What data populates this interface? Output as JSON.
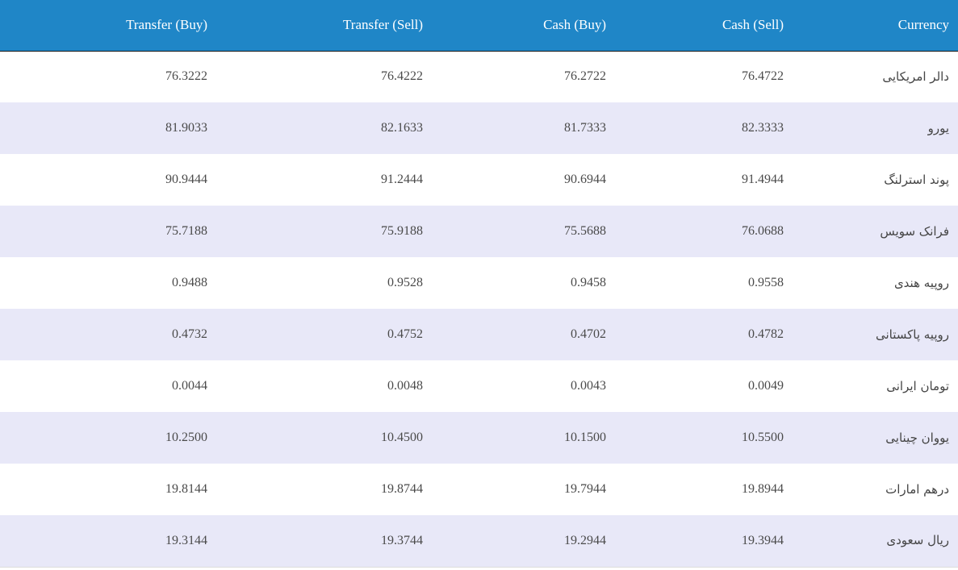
{
  "table": {
    "headers": {
      "transfer_buy": "Transfer (Buy)",
      "transfer_sell": "Transfer (Sell)",
      "cash_buy": "Cash (Buy)",
      "cash_sell": "Cash (Sell)",
      "currency": "Currency"
    },
    "rows": [
      {
        "transfer_buy": "76.3222",
        "transfer_sell": "76.4222",
        "cash_buy": "76.2722",
        "cash_sell": "76.4722",
        "currency": "دالر امریکایی"
      },
      {
        "transfer_buy": "81.9033",
        "transfer_sell": "82.1633",
        "cash_buy": "81.7333",
        "cash_sell": "82.3333",
        "currency": "یورو"
      },
      {
        "transfer_buy": "90.9444",
        "transfer_sell": "91.2444",
        "cash_buy": "90.6944",
        "cash_sell": "91.4944",
        "currency": "پوند استرلنگ"
      },
      {
        "transfer_buy": "75.7188",
        "transfer_sell": "75.9188",
        "cash_buy": "75.5688",
        "cash_sell": "76.0688",
        "currency": "فرانک سویس"
      },
      {
        "transfer_buy": "0.9488",
        "transfer_sell": "0.9528",
        "cash_buy": "0.9458",
        "cash_sell": "0.9558",
        "currency": "روپیه هندی"
      },
      {
        "transfer_buy": "0.4732",
        "transfer_sell": "0.4752",
        "cash_buy": "0.4702",
        "cash_sell": "0.4782",
        "currency": "روپیه پاکستانی"
      },
      {
        "transfer_buy": "0.0044",
        "transfer_sell": "0.0048",
        "cash_buy": "0.0043",
        "cash_sell": "0.0049",
        "currency": "تومان ایرانی"
      },
      {
        "transfer_buy": "10.2500",
        "transfer_sell": "10.4500",
        "cash_buy": "10.1500",
        "cash_sell": "10.5500",
        "currency": "یووان چینایی"
      },
      {
        "transfer_buy": "19.8144",
        "transfer_sell": "19.8744",
        "cash_buy": "19.7944",
        "cash_sell": "19.8944",
        "currency": "درهم امارات"
      },
      {
        "transfer_buy": "19.3144",
        "transfer_sell": "19.3744",
        "cash_buy": "19.2944",
        "cash_sell": "19.3944",
        "currency": "ریال سعودی"
      }
    ]
  }
}
